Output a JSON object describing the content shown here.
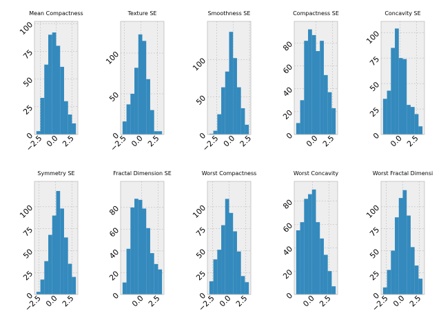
{
  "chart_data": [
    {
      "type": "histogram",
      "title": "Mean Compactness",
      "color": "#348abd",
      "grid": true,
      "bins": [
        -3.1,
        -2.48,
        -1.86,
        -1.24,
        -0.62,
        0,
        0.62,
        1.24,
        1.86,
        2.48,
        3.1
      ],
      "values": [
        3,
        33,
        63,
        90,
        92,
        80,
        61,
        30,
        18,
        10
      ],
      "xlim": [
        -3.4,
        3.4
      ],
      "xticks": [
        {
          "value": -2.5,
          "label": "−2.5"
        },
        {
          "value": 0,
          "label": "0.0"
        },
        2.5
      ],
      "ylim": [
        0,
        102
      ],
      "yticks": [
        0,
        25,
        50,
        75,
        100
      ]
    },
    {
      "type": "histogram",
      "title": "Texture SE",
      "color": "#348abd",
      "grid": true,
      "bins": [
        -2.8,
        -2.2,
        -1.6,
        -1,
        -0.4,
        0.2,
        0.8,
        1.4,
        2,
        2.6,
        3.2
      ],
      "values": [
        16,
        37,
        50,
        82,
        123,
        115,
        68,
        30,
        4,
        4
      ],
      "xlim": [
        -3.1,
        3.5
      ],
      "xticks": [
        {
          "value": -2.5,
          "label": "−2.5"
        },
        {
          "value": 0,
          "label": "0.0"
        },
        2.5
      ],
      "ylim": [
        0,
        139
      ],
      "yticks": [
        0,
        50,
        100
      ]
    },
    {
      "type": "histogram",
      "title": "Smoothness SE",
      "color": "#348abd",
      "grid": true,
      "bins": [
        -3.6,
        -3,
        -2.4,
        -1.8,
        -1.2,
        -0.6,
        0,
        0.6,
        1.2,
        1.8,
        2.4
      ],
      "values": [
        1,
        5,
        27,
        63,
        84,
        137,
        102,
        63,
        35,
        13
      ],
      "xlim": [
        -3.9,
        2.7
      ],
      "xticks": [
        {
          "value": -2.5,
          "label": "−2.5"
        },
        {
          "value": 0,
          "label": "0.0"
        },
        2.5
      ],
      "ylim": [
        0,
        151
      ],
      "yticks": [
        0,
        50,
        100
      ]
    },
    {
      "type": "histogram",
      "title": "Compactness SE",
      "color": "#348abd",
      "grid": true,
      "bins": [
        -3,
        -2.4,
        -1.8,
        -1.2,
        -0.6,
        0,
        0.6,
        1.2,
        1.8,
        2.4,
        3
      ],
      "values": [
        10,
        30,
        82,
        92,
        87,
        73,
        82,
        52,
        37,
        23
      ],
      "xlim": [
        -3.3,
        3.3
      ],
      "xticks": [
        {
          "value": 0,
          "label": "0.0"
        },
        2.5
      ],
      "ylim": [
        0,
        99
      ],
      "yticks": [
        0,
        20,
        40,
        60,
        80
      ]
    },
    {
      "type": "histogram",
      "title": "Concavity SE",
      "color": "#348abd",
      "grid": true,
      "bins": [
        -2.6,
        -2,
        -1.4,
        -0.8,
        -0.2,
        0.4,
        1,
        1.6,
        2.2,
        2.8,
        3.4
      ],
      "values": [
        35,
        43,
        85,
        104,
        75,
        74,
        29,
        27,
        20,
        8
      ],
      "xlim": [
        -2.9,
        3.7
      ],
      "xticks": [
        {
          "value": 0,
          "label": "0.0"
        },
        2.5
      ],
      "ylim": [
        0,
        111
      ],
      "yticks": [
        0,
        25,
        50,
        75,
        100
      ]
    },
    {
      "type": "histogram",
      "title": "Symmetry SE",
      "color": "#348abd",
      "grid": true,
      "bins": [
        -2.9,
        -2.3,
        -1.7,
        -1.1,
        -0.5,
        0.1,
        0.7,
        1.3,
        1.9,
        2.5,
        3.1
      ],
      "values": [
        3,
        17,
        38,
        68,
        90,
        118,
        98,
        65,
        35,
        20
      ],
      "xlim": [
        -3.2,
        3.4
      ],
      "xticks": [
        {
          "value": -2.5,
          "label": "−2.5"
        },
        {
          "value": 0,
          "label": "0.0"
        },
        2.5
      ],
      "ylim": [
        0,
        129
      ],
      "yticks": [
        0,
        25,
        50,
        75,
        100
      ]
    },
    {
      "type": "histogram",
      "title": "Fractal Dimension SE",
      "color": "#348abd",
      "grid": true,
      "bins": [
        -2.9,
        -2.3,
        -1.7,
        -1.1,
        -0.5,
        0.1,
        0.7,
        1.3,
        1.9,
        2.5,
        3.1
      ],
      "values": [
        11,
        42,
        80,
        88,
        87,
        79,
        61,
        38,
        28,
        23
      ],
      "xlim": [
        -3.2,
        3.4
      ],
      "xticks": [
        {
          "value": 0,
          "label": "0.0"
        },
        2.5
      ],
      "ylim": [
        0,
        104
      ],
      "yticks": [
        0,
        20,
        40,
        60,
        80
      ]
    },
    {
      "type": "histogram",
      "title": "Worst Compactness",
      "color": "#348abd",
      "grid": true,
      "bins": [
        -3,
        -2.4,
        -1.8,
        -1.2,
        -0.6,
        0,
        0.6,
        1.2,
        1.8,
        2.4,
        3
      ],
      "values": [
        15,
        40,
        51,
        79,
        109,
        93,
        72,
        49,
        21,
        14
      ],
      "xlim": [
        -3.3,
        3.3
      ],
      "xticks": [
        {
          "value": -2.5,
          "label": "−2.5"
        },
        {
          "value": 0,
          "label": "0.0"
        },
        2.5
      ],
      "ylim": [
        0,
        129
      ],
      "yticks": [
        0,
        25,
        50,
        75,
        100
      ]
    },
    {
      "type": "histogram",
      "title": "Worst Concavity",
      "color": "#348abd",
      "grid": true,
      "bins": [
        -2.5,
        -1.9,
        -1.3,
        -0.7,
        -0.1,
        0.5,
        1.1,
        1.7,
        2.3,
        2.9,
        3.5
      ],
      "values": [
        55,
        62,
        82,
        86,
        90,
        62,
        48,
        34,
        20,
        7
      ],
      "xlim": [
        -2.8,
        3.8
      ],
      "xticks": [
        {
          "value": 0,
          "label": "0.0"
        },
        2.5
      ],
      "ylim": [
        0,
        97
      ],
      "yticks": [
        0,
        20,
        40,
        60,
        80
      ]
    },
    {
      "type": "histogram",
      "title": "Worst Fractal Dimensi",
      "color": "#348abd",
      "grid": true,
      "bins": [
        -3,
        -2.4,
        -1.8,
        -1.2,
        -0.6,
        0,
        0.6,
        1.2,
        1.8,
        2.4,
        3
      ],
      "values": [
        8,
        28,
        50,
        88,
        110,
        119,
        90,
        54,
        33,
        18
      ],
      "xlim": [
        -3.3,
        3.3
      ],
      "xticks": [
        {
          "value": -2.5,
          "label": "−2.5"
        },
        {
          "value": 0,
          "label": "0.0"
        },
        2.5
      ],
      "ylim": [
        0,
        129
      ],
      "yticks": [
        0,
        25,
        50,
        75,
        100
      ]
    }
  ]
}
